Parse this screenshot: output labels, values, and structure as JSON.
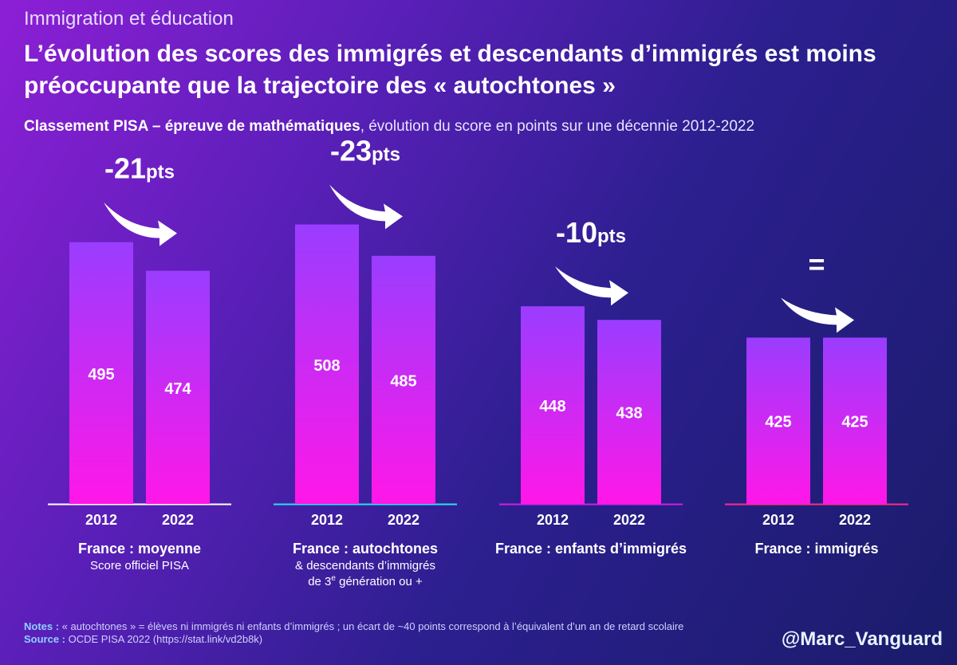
{
  "chart_data": {
    "type": "bar",
    "supertitle": "Immigration et éducation",
    "title": "L’évolution des scores des immigrés et descendants d’immigrés est moins préoccupante que la trajectoire des « autochtones »",
    "subtitle_bold": "Classement PISA – épreuve de mathématiques",
    "subtitle_rest": ", évolution du score en points sur une décennie 2012-2022",
    "categories": [
      "France : moyenne",
      "France : autochtones",
      "France : enfants d’immigrés",
      "France : immigrés"
    ],
    "category_notes": [
      [
        "Score officiel PISA"
      ],
      [
        "& descendants d’immigrés",
        "de 3",
        "e",
        " génération ou +"
      ],
      [],
      []
    ],
    "change_labels": [
      [
        "-21",
        "pts"
      ],
      [
        "-23",
        "pts"
      ],
      [
        "-10",
        "pts"
      ],
      [
        "="
      ]
    ],
    "series": [
      {
        "name": "2012",
        "values": [
          495,
          508,
          448,
          425
        ]
      },
      {
        "name": "2022",
        "values": [
          474,
          485,
          438,
          425
        ]
      }
    ],
    "color_top": "#9a3dff",
    "color_bottom": "#ff17e8",
    "baseline_colors": [
      "#ffffff",
      "#27e0f0",
      "#d01ee8",
      "#ff2a8c"
    ],
    "ylim": [
      303,
      520
    ],
    "notes_label": "Notes :",
    "notes": " « autochtones » = élèves ni immigrés ni enfants d’immigrés ; un écart de ~40 points correspond à l’équivalent d’un an de retard scolaire",
    "source_label": "Source :",
    "source": " OCDE PISA 2022 (https://stat.link/vd2b8k)",
    "handle": "@Marc_Vanguard"
  }
}
